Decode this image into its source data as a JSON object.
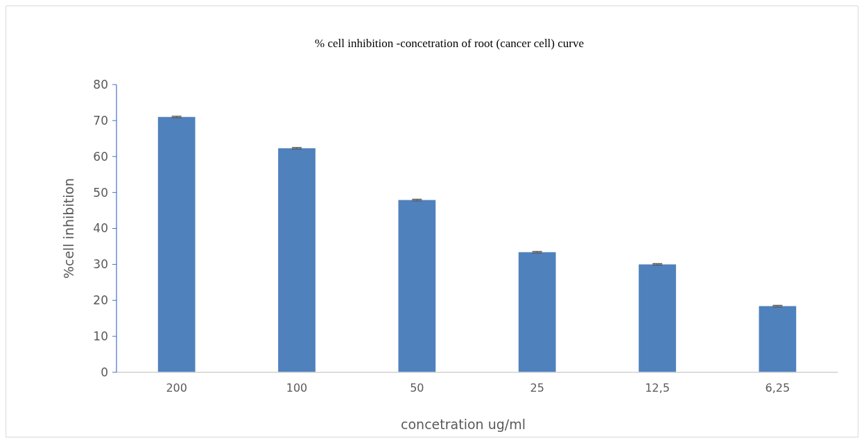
{
  "chart_data": {
    "type": "bar",
    "title": "% cell inhibition -concetration of root (cancer cell) curve",
    "xlabel": "concetration ug/ml",
    "ylabel": "%cell inhibition",
    "categories": [
      "200",
      "100",
      "50",
      "25",
      "12,5",
      "6,25"
    ],
    "values": [
      71.0,
      62.3,
      47.9,
      33.4,
      30.0,
      18.4
    ],
    "errors": [
      0.2,
      0.2,
      0.2,
      0.2,
      0.2,
      0.2
    ],
    "color": "#4f81bd",
    "ylim": [
      0,
      80
    ],
    "yticks": [
      0,
      10,
      20,
      30,
      40,
      50,
      60,
      70,
      80
    ],
    "grid": false
  }
}
